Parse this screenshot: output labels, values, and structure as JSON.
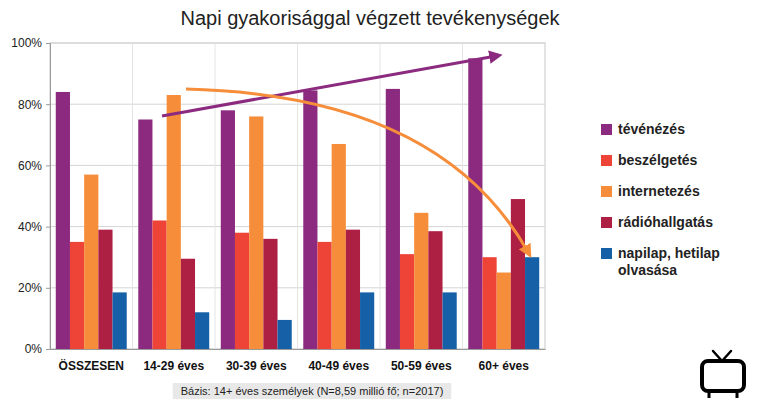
{
  "chart_data": {
    "type": "bar",
    "title": "Napi gyakorisággal végzett tevékenységek",
    "categories": [
      "ÖSSZESEN",
      "14-29 éves",
      "30-39 éves",
      "40-49 éves",
      "50-59 éves",
      "60+ éves"
    ],
    "series": [
      {
        "name": "tévénézés",
        "color": "#8b2a7f",
        "values": [
          84,
          75,
          78,
          84.5,
          85,
          95
        ]
      },
      {
        "name": "beszélgetés",
        "color": "#ee4337",
        "values": [
          35,
          42,
          38,
          35,
          31,
          30
        ]
      },
      {
        "name": "internetezés",
        "color": "#f68d3a",
        "values": [
          57,
          83,
          76,
          67,
          44.5,
          25
        ]
      },
      {
        "name": "rádióhallgatás",
        "color": "#ad2044",
        "values": [
          39,
          29.5,
          36,
          39,
          38.5,
          49
        ]
      },
      {
        "name": "napilap, hetilap olvasása",
        "color": "#1660a8",
        "values": [
          18.5,
          12,
          9.5,
          18.5,
          18.5,
          30
        ]
      }
    ],
    "ylim": [
      0,
      100
    ],
    "yticks": [
      {
        "value": 0,
        "label": "0%"
      },
      {
        "value": 20,
        "label": "20%"
      },
      {
        "value": 40,
        "label": "40%"
      },
      {
        "value": 60,
        "label": "60%"
      },
      {
        "value": 80,
        "label": "80%"
      },
      {
        "value": 100,
        "label": "100%"
      }
    ],
    "grid": true,
    "legend": "right",
    "annotations": [
      "Bázis: 14+ éves személyek (N=8,59 millió fő; n=2017)"
    ]
  }
}
